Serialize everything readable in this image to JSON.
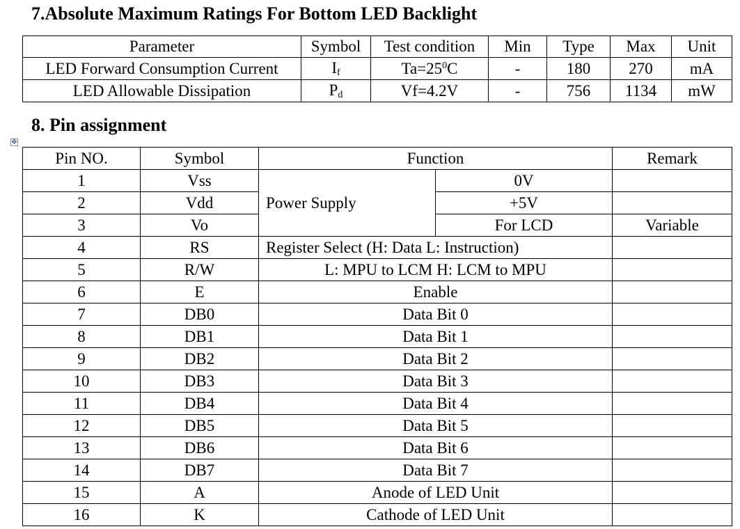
{
  "section7": {
    "title": "7.Absolute Maximum Ratings For Bottom LED Backlight",
    "headers": [
      "Parameter",
      "Symbol",
      "Test condition",
      "Min",
      "Type",
      "Max",
      "Unit"
    ],
    "rows": [
      {
        "parameter": "LED Forward Consumption Current",
        "symbol_main": "I",
        "symbol_sub": "f",
        "test_condition_a": "Ta=25",
        "test_condition_sup": "0",
        "test_condition_b": "C",
        "min": "-",
        "type": "180",
        "max": "270",
        "unit": "mA"
      },
      {
        "parameter": "LED Allowable Dissipation",
        "symbol_main": "P",
        "symbol_sub": "d",
        "test_condition": "Vf=4.2V",
        "min": "-",
        "type": "756",
        "max": "1134",
        "unit": "mW"
      }
    ]
  },
  "section8": {
    "title": "8. Pin assignment",
    "headers": [
      "Pin NO.",
      "Symbol",
      "Function",
      "Remark"
    ],
    "power_supply_label": "Power Supply",
    "rows": [
      {
        "pin": "1",
        "symbol": "Vss",
        "function": "0V",
        "remark": ""
      },
      {
        "pin": "2",
        "symbol": "Vdd",
        "function": "+5V",
        "remark": ""
      },
      {
        "pin": "3",
        "symbol": "Vo",
        "function": "For LCD",
        "remark": "Variable"
      },
      {
        "pin": "4",
        "symbol": "RS",
        "function": "Register Select (H: Data L: Instruction)",
        "remark": ""
      },
      {
        "pin": "5",
        "symbol": "R/W",
        "function": "L: MPU to LCM H: LCM to MPU",
        "remark": ""
      },
      {
        "pin": "6",
        "symbol": "E",
        "function": "Enable",
        "remark": ""
      },
      {
        "pin": "7",
        "symbol": "DB0",
        "function": "Data Bit 0",
        "remark": ""
      },
      {
        "pin": "8",
        "symbol": "DB1",
        "function": "Data Bit 1",
        "remark": ""
      },
      {
        "pin": "9",
        "symbol": "DB2",
        "function": "Data Bit 2",
        "remark": ""
      },
      {
        "pin": "10",
        "symbol": "DB3",
        "function": "Data Bit 3",
        "remark": ""
      },
      {
        "pin": "11",
        "symbol": "DB4",
        "function": "Data Bit 4",
        "remark": ""
      },
      {
        "pin": "12",
        "symbol": "DB5",
        "function": "Data Bit 5",
        "remark": ""
      },
      {
        "pin": "13",
        "symbol": "DB6",
        "function": "Data Bit 6",
        "remark": ""
      },
      {
        "pin": "14",
        "symbol": "DB7",
        "function": "Data Bit 7",
        "remark": ""
      },
      {
        "pin": "15",
        "symbol": "A",
        "function": "Anode of LED Unit",
        "remark": ""
      },
      {
        "pin": "16",
        "symbol": "K",
        "function": "Cathode of LED Unit",
        "remark": ""
      }
    ]
  },
  "table_anchor_icon": "move-handle-icon"
}
